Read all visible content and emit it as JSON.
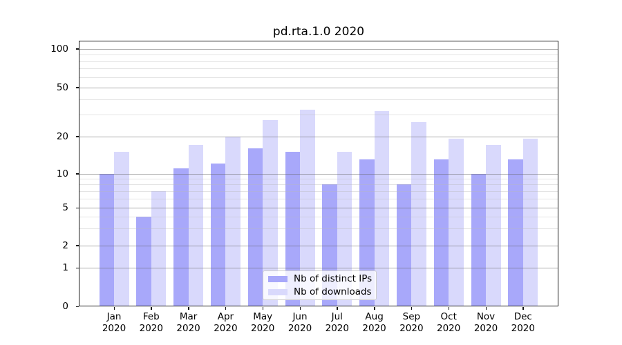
{
  "title": "pd.rta.1.0 2020",
  "y_axis": {
    "tick_labels": [
      100,
      50,
      20,
      10,
      5,
      2,
      1,
      0
    ]
  },
  "x_axis": {
    "months": [
      "Jan",
      "Feb",
      "Mar",
      "Apr",
      "May",
      "Jun",
      "Jul",
      "Aug",
      "Sep",
      "Oct",
      "Nov",
      "Dec"
    ],
    "year": "2020"
  },
  "legend": {
    "items": [
      {
        "label": "Nb of distinct IPs",
        "color": "#a8a8fa"
      },
      {
        "label": "Nb of downloads",
        "color": "#d9d9fc"
      }
    ]
  },
  "chart_data": {
    "type": "bar",
    "title": "pd.rta.1.0 2020",
    "categories": [
      "Jan 2020",
      "Feb 2020",
      "Mar 2020",
      "Apr 2020",
      "May 2020",
      "Jun 2020",
      "Jul 2020",
      "Aug 2020",
      "Sep 2020",
      "Oct 2020",
      "Nov 2020",
      "Dec 2020"
    ],
    "series": [
      {
        "name": "Nb of distinct IPs",
        "color": "#a8a8fa",
        "values": [
          10,
          4,
          11,
          12,
          16,
          15,
          8,
          13,
          8,
          13,
          10,
          13
        ]
      },
      {
        "name": "Nb of downloads",
        "color": "#d9d9fc",
        "values": [
          15,
          7,
          17,
          20,
          27,
          33,
          15,
          32,
          26,
          19,
          17,
          19
        ]
      }
    ],
    "ylabel": "",
    "xlabel": "",
    "yscale": "symlog",
    "y_ticks": [
      0,
      1,
      2,
      5,
      10,
      20,
      50,
      100
    ],
    "y_minor_ticks": [
      3,
      4,
      6,
      7,
      8,
      9,
      30,
      40,
      60,
      70,
      80,
      90
    ],
    "ylim": [
      0,
      115
    ],
    "grid": "horizontal major+minor",
    "legend_position": "lower center"
  }
}
